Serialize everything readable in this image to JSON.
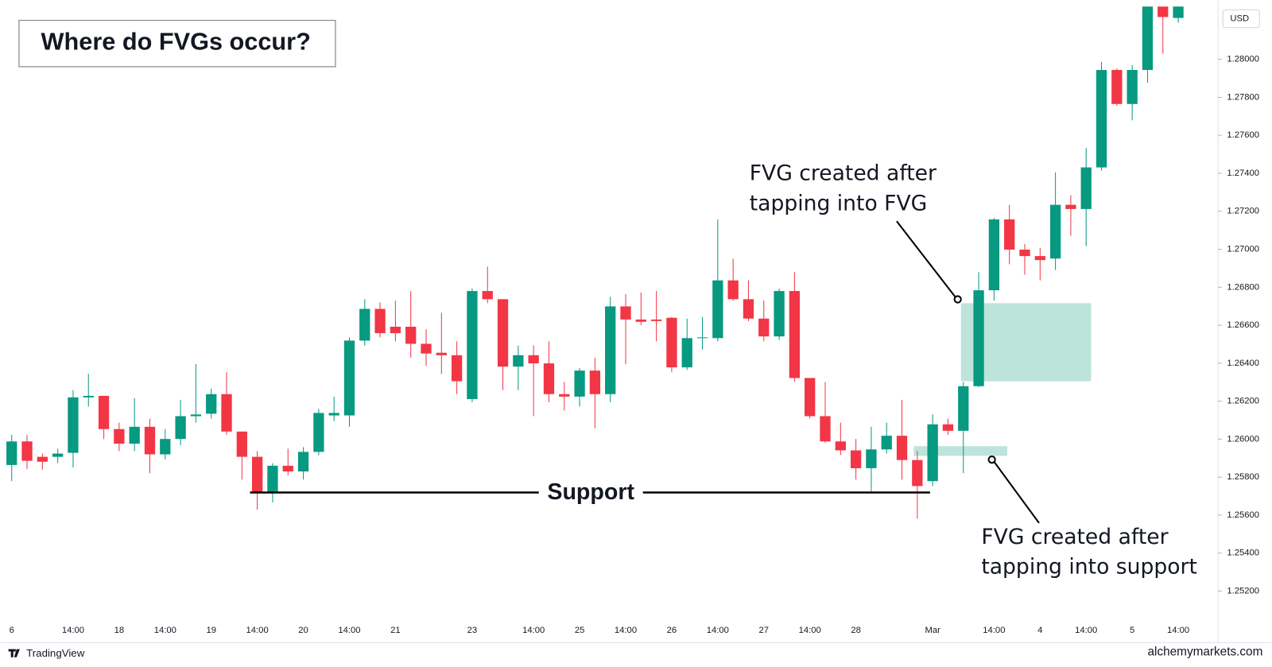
{
  "chart_data": {
    "type": "candlestick",
    "title": "Where do FVGs occur?",
    "currency": "USD",
    "categories": [
      "6",
      null,
      null,
      null,
      "14:00",
      null,
      null,
      "18",
      null,
      null,
      "14:00",
      null,
      null,
      "19",
      null,
      null,
      "14:00",
      null,
      null,
      "20",
      null,
      null,
      "14:00",
      null,
      null,
      "21",
      null,
      null,
      null,
      null,
      "23",
      null,
      null,
      null,
      "14:00",
      null,
      null,
      "25",
      null,
      null,
      "14:00",
      null,
      null,
      "26",
      null,
      null,
      "14:00",
      null,
      null,
      "27",
      null,
      null,
      "14:00",
      null,
      null,
      "28",
      null,
      null,
      null,
      null,
      "Mar",
      null,
      null,
      null,
      "14:00",
      null,
      null,
      "4",
      null,
      null,
      "14:00",
      null,
      null,
      "5",
      null,
      null,
      "14:00"
    ],
    "open": [
      1.25864,
      1.25988,
      1.25907,
      1.25907,
      1.25928,
      1.2622,
      1.26228,
      1.26053,
      1.25976,
      1.26065,
      1.2592,
      1.26001,
      1.26121,
      1.26134,
      1.26237,
      1.2604,
      1.25907,
      1.25719,
      1.2586,
      1.2583,
      1.25933,
      1.26125,
      1.26125,
      1.26519,
      1.26686,
      1.26592,
      1.26592,
      1.26502,
      1.26455,
      1.26442,
      1.26211,
      1.2678,
      1.26737,
      1.26382,
      1.26442,
      1.26399,
      1.26237,
      1.26224,
      1.26361,
      1.26237,
      1.26699,
      1.2663,
      1.2663,
      1.26639,
      1.26378,
      1.26532,
      1.26532,
      1.26836,
      1.26737,
      1.26635,
      1.26541,
      1.2678,
      1.26322,
      1.26121,
      1.25988,
      1.25941,
      1.25847,
      1.25946,
      1.26018,
      1.2589,
      1.25779,
      1.26078,
      1.26044,
      1.26279,
      1.26784,
      1.27157,
      1.26998,
      1.26964,
      1.26951,
      1.27234,
      1.27212,
      1.27431,
      1.27944,
      1.27765,
      1.27944,
      1.28278,
      1.28218
    ],
    "high": [
      1.26023,
      1.26023,
      1.25924,
      1.2595,
      1.26258,
      1.26344,
      1.26228,
      1.26087,
      1.26215,
      1.26108,
      1.26053,
      1.26207,
      1.26395,
      1.26267,
      1.26352,
      1.2604,
      1.25937,
      1.25873,
      1.2595,
      1.25958,
      1.2616,
      1.26224,
      1.26536,
      1.26737,
      1.2672,
      1.26729,
      1.2678,
      1.26579,
      1.26665,
      1.26515,
      1.26793,
      1.26909,
      1.26737,
      1.26493,
      1.26493,
      1.26515,
      1.26301,
      1.26374,
      1.26429,
      1.2675,
      1.26763,
      1.26772,
      1.2678,
      1.26643,
      1.26635,
      1.26643,
      1.27157,
      1.26951,
      1.26836,
      1.26729,
      1.26793,
      1.26879,
      1.26322,
      1.26301,
      1.26087,
      1.26001,
      1.26065,
      1.26087,
      1.26207,
      1.25937,
      1.2613,
      1.26108,
      1.26301,
      1.26879,
      1.27165,
      1.27234,
      1.27028,
      1.27007,
      1.27405,
      1.27285,
      1.27533,
      1.27987,
      1.27953,
      1.2797,
      1.28278,
      1.28278,
      1.28278
    ],
    "low": [
      1.25779,
      1.25843,
      1.25839,
      1.25873,
      1.25851,
      1.26172,
      1.26001,
      1.25937,
      1.25937,
      1.25821,
      1.25894,
      1.25967,
      1.26087,
      1.26108,
      1.26023,
      1.25787,
      1.25629,
      1.25667,
      1.25809,
      1.25787,
      1.25916,
      1.26095,
      1.26065,
      1.26493,
      1.26536,
      1.26515,
      1.26429,
      1.26386,
      1.26344,
      1.26237,
      1.26194,
      1.26716,
      1.26258,
      1.26258,
      1.26121,
      1.26194,
      1.26151,
      1.26172,
      1.26057,
      1.26194,
      1.26395,
      1.266,
      1.26515,
      1.26352,
      1.26365,
      1.26472,
      1.26515,
      1.26729,
      1.26622,
      1.26515,
      1.26523,
      1.26301,
      1.26108,
      1.2598,
      1.25916,
      1.25787,
      1.25723,
      1.25924,
      1.25787,
      1.25582,
      1.25753,
      1.26023,
      1.25821,
      1.26275,
      1.26729,
      1.26921,
      1.26866,
      1.26836,
      1.26891,
      1.27071,
      1.27016,
      1.27414,
      1.27756,
      1.27679,
      1.27876,
      1.2803,
      1.28193
    ],
    "close": [
      1.25988,
      1.25886,
      1.25881,
      1.25924,
      1.2622,
      1.26228,
      1.26053,
      1.25976,
      1.26065,
      1.2592,
      1.26001,
      1.26121,
      1.2613,
      1.26237,
      1.2604,
      1.25907,
      1.25719,
      1.2586,
      1.2583,
      1.25933,
      1.26138,
      1.26138,
      1.26519,
      1.26686,
      1.26558,
      1.26558,
      1.26502,
      1.26451,
      1.26442,
      1.26305,
      1.2678,
      1.26737,
      1.26382,
      1.26442,
      1.26399,
      1.26237,
      1.26224,
      1.26361,
      1.26237,
      1.26699,
      1.2663,
      1.26618,
      1.26622,
      1.26378,
      1.26532,
      1.26536,
      1.26836,
      1.26737,
      1.26635,
      1.26541,
      1.2678,
      1.26322,
      1.26121,
      1.25988,
      1.25941,
      1.25847,
      1.25946,
      1.26018,
      1.2589,
      1.25753,
      1.26078,
      1.26044,
      1.26279,
      1.26784,
      1.27157,
      1.26998,
      1.26964,
      1.26943,
      1.27234,
      1.27212,
      1.27431,
      1.27944,
      1.27765,
      1.27944,
      1.28278,
      1.28223,
      1.28278
    ],
    "up_color": "#089981",
    "down_color": "#f23645",
    "ylim": [
      1.2507,
      1.2828
    ],
    "yticks": [
      {
        "value": 1.252,
        "label": "1.25200"
      },
      {
        "value": 1.254,
        "label": "1.25400"
      },
      {
        "value": 1.256,
        "label": "1.25600"
      },
      {
        "value": 1.258,
        "label": "1.25800"
      },
      {
        "value": 1.26,
        "label": "1.26000"
      },
      {
        "value": 1.262,
        "label": "1.26200"
      },
      {
        "value": 1.264,
        "label": "1.26400"
      },
      {
        "value": 1.266,
        "label": "1.26600"
      },
      {
        "value": 1.268,
        "label": "1.26800"
      },
      {
        "value": 1.27,
        "label": "1.27000"
      },
      {
        "value": 1.272,
        "label": "1.27200"
      },
      {
        "value": 1.274,
        "label": "1.27400"
      },
      {
        "value": 1.276,
        "label": "1.27600"
      },
      {
        "value": 1.278,
        "label": "1.27800"
      },
      {
        "value": 1.28,
        "label": "1.28000"
      }
    ],
    "support": {
      "label": "Support",
      "value": 1.25719
    },
    "zones": [
      {
        "low": 1.26305,
        "high": 1.26716,
        "color": "#b2dfd5"
      },
      {
        "low": 1.25912,
        "high": 1.25963,
        "color": "#b2dfd5"
      }
    ],
    "annotations": [
      {
        "lines": [
          "FVG created after",
          "tapping into FVG"
        ]
      },
      {
        "lines": [
          "FVG created after",
          "tapping into support"
        ]
      }
    ],
    "footer_left": "TradingView",
    "footer_right": "alchemymarkets.com"
  }
}
